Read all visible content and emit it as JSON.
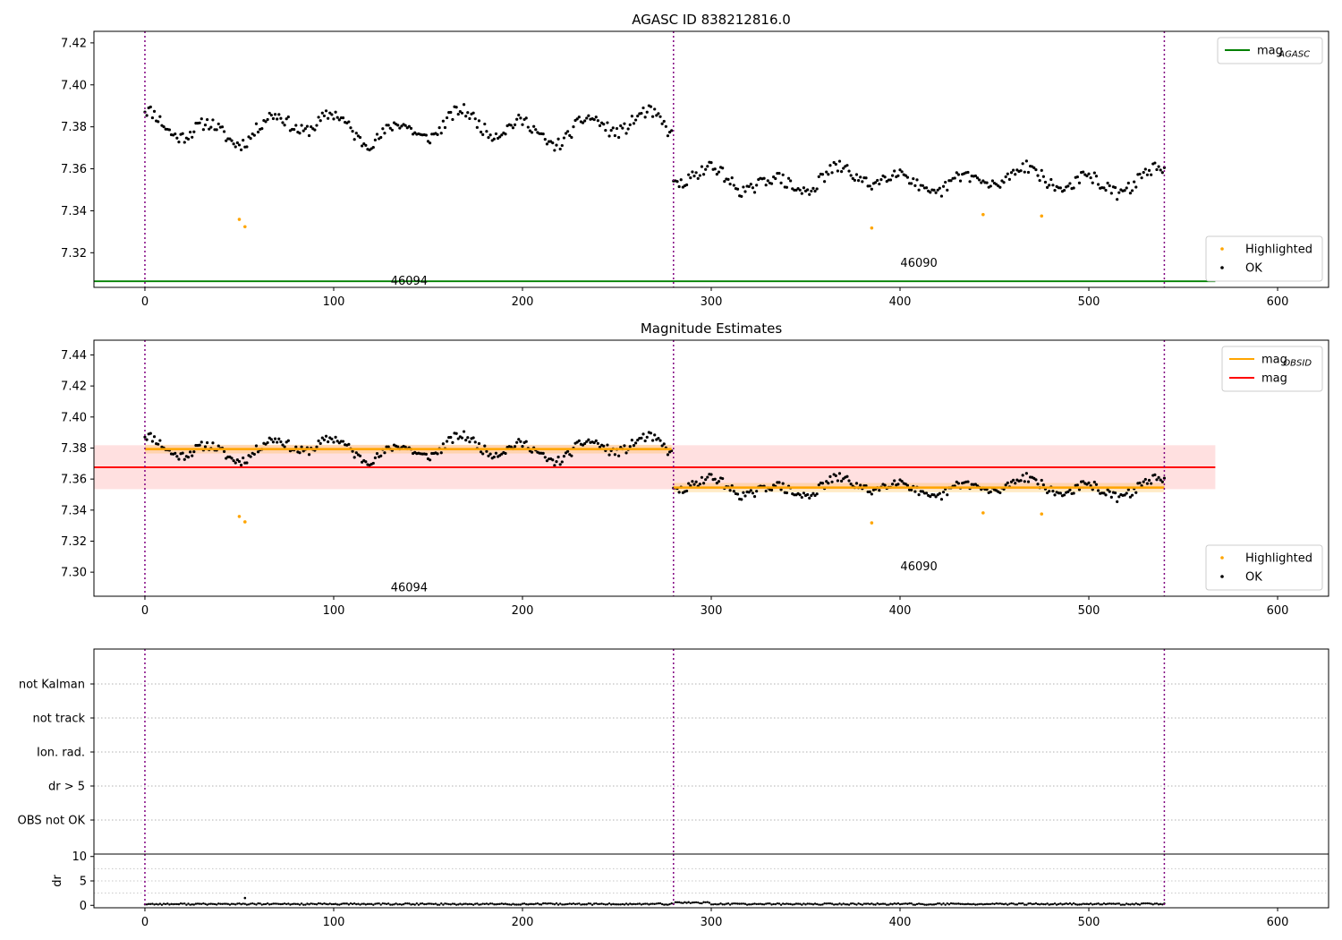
{
  "chart_data": [
    {
      "type": "scatter",
      "title": "AGASC ID 838212816.0",
      "xlabel": "",
      "ylabel": "",
      "xlim": [
        -27,
        627
      ],
      "ylim": [
        7.3035,
        7.4255
      ],
      "xticks": [
        0,
        100,
        200,
        300,
        400,
        500,
        600
      ],
      "yticks": [
        7.32,
        7.34,
        7.36,
        7.38,
        7.4,
        7.42
      ],
      "ytick_labels": [
        "7.32",
        "7.34",
        "7.36",
        "7.38",
        "7.40",
        "7.42"
      ],
      "obsid_boundaries": [
        0,
        280,
        540
      ],
      "obsid_labels": [
        {
          "text": "46094",
          "x": 140,
          "y": 7.3065
        },
        {
          "text": "46090",
          "x": 410,
          "y": 7.315
        }
      ],
      "lines": [
        {
          "name": "mag_AGASC",
          "label_main": "mag",
          "label_sub": "AGASC",
          "y": 7.3064,
          "x_range": [
            -27,
            567
          ],
          "color": "#008000"
        }
      ],
      "series_ok": {
        "name": "OK",
        "color": "#000000",
        "segments": [
          {
            "x_range": [
              0,
              279
            ],
            "mean": 7.3795,
            "amplitude": 0.0085,
            "noise": 0.003
          },
          {
            "x_range": [
              280,
              540
            ],
            "mean": 7.3545,
            "amplitude": 0.007,
            "noise": 0.003
          }
        ]
      },
      "series_highlighted": {
        "name": "Highlighted",
        "color": "#FFA500",
        "x": [
          50,
          53,
          385,
          444,
          475
        ],
        "y": [
          7.3359,
          7.3324,
          7.3318,
          7.3382,
          7.3375
        ]
      },
      "legends": [
        {
          "placement": "top-right",
          "entries": [
            {
              "kind": "line",
              "color": "#008000",
              "label": "mag",
              "sub": "AGASC"
            }
          ]
        },
        {
          "placement": "bottom-right",
          "entries": [
            {
              "kind": "point",
              "color": "#FFA500",
              "label": "Highlighted"
            },
            {
              "kind": "point",
              "color": "#000000",
              "label": "OK"
            }
          ]
        }
      ]
    },
    {
      "type": "scatter",
      "title": "Magnitude Estimates",
      "xlabel": "",
      "ylabel": "",
      "xlim": [
        -27,
        627
      ],
      "ylim": [
        7.2845,
        7.4495
      ],
      "xticks": [
        0,
        100,
        200,
        300,
        400,
        500,
        600
      ],
      "yticks": [
        7.3,
        7.32,
        7.34,
        7.36,
        7.38,
        7.4,
        7.42,
        7.44
      ],
      "ytick_labels": [
        "7.30",
        "7.32",
        "7.34",
        "7.36",
        "7.38",
        "7.40",
        "7.42",
        "7.44"
      ],
      "obsid_boundaries": [
        0,
        280,
        540
      ],
      "obsid_labels": [
        {
          "text": "46094",
          "x": 140,
          "y": 7.29
        },
        {
          "text": "46090",
          "x": 410,
          "y": 7.3035
        }
      ],
      "mag": {
        "name": "mag",
        "y": 7.3676,
        "band": [
          7.3535,
          7.3818
        ],
        "x_range": [
          -27,
          567
        ],
        "color": "#FF0000"
      },
      "mag_obsid": [
        {
          "x_range": [
            0,
            279
          ],
          "y": 7.3793,
          "band": [
            7.3765,
            7.3821
          ]
        },
        {
          "x_range": [
            280,
            540
          ],
          "y": 7.3545,
          "band": [
            7.3515,
            7.3575
          ]
        }
      ],
      "series_ok": {
        "name": "OK",
        "color": "#000000"
      },
      "series_highlighted": {
        "name": "Highlighted",
        "color": "#FFA500",
        "x": [
          50,
          53,
          385,
          444,
          475
        ],
        "y": [
          7.3359,
          7.3324,
          7.3318,
          7.3382,
          7.3375
        ]
      },
      "legends": [
        {
          "placement": "top-right",
          "entries": [
            {
              "kind": "line",
              "color": "#FFA500",
              "label": "mag",
              "sub": "OBSID"
            },
            {
              "kind": "line",
              "color": "#FF0000",
              "label": "mag"
            }
          ]
        },
        {
          "placement": "bottom-right",
          "entries": [
            {
              "kind": "point",
              "color": "#FFA500",
              "label": "Highlighted"
            },
            {
              "kind": "point",
              "color": "#000000",
              "label": "OK"
            }
          ]
        }
      ]
    },
    {
      "type": "scatter",
      "title": "",
      "xlabel": "",
      "ylabel": "",
      "xlim": [
        -27,
        627
      ],
      "categories": [
        "not Kalman",
        "not track",
        "Ion. rad.",
        "dr > 5",
        "OBS not OK"
      ],
      "flags": [],
      "obsid_boundaries": [
        0,
        280,
        540
      ]
    },
    {
      "type": "scatter",
      "title": "",
      "xlabel": "",
      "ylabel": "dr",
      "xlim": [
        -27,
        627
      ],
      "ylim": [
        -0.5,
        10.5
      ],
      "xticks": [
        0,
        100,
        200,
        300,
        400,
        500,
        600
      ],
      "yticks": [
        0,
        5,
        10
      ],
      "obsid_boundaries": [
        0,
        280,
        540
      ],
      "series_dr": {
        "name": "dr",
        "color": "#000000",
        "typical": 0.25,
        "outliers": [
          {
            "x": 53,
            "y": 1.5
          }
        ]
      }
    }
  ]
}
